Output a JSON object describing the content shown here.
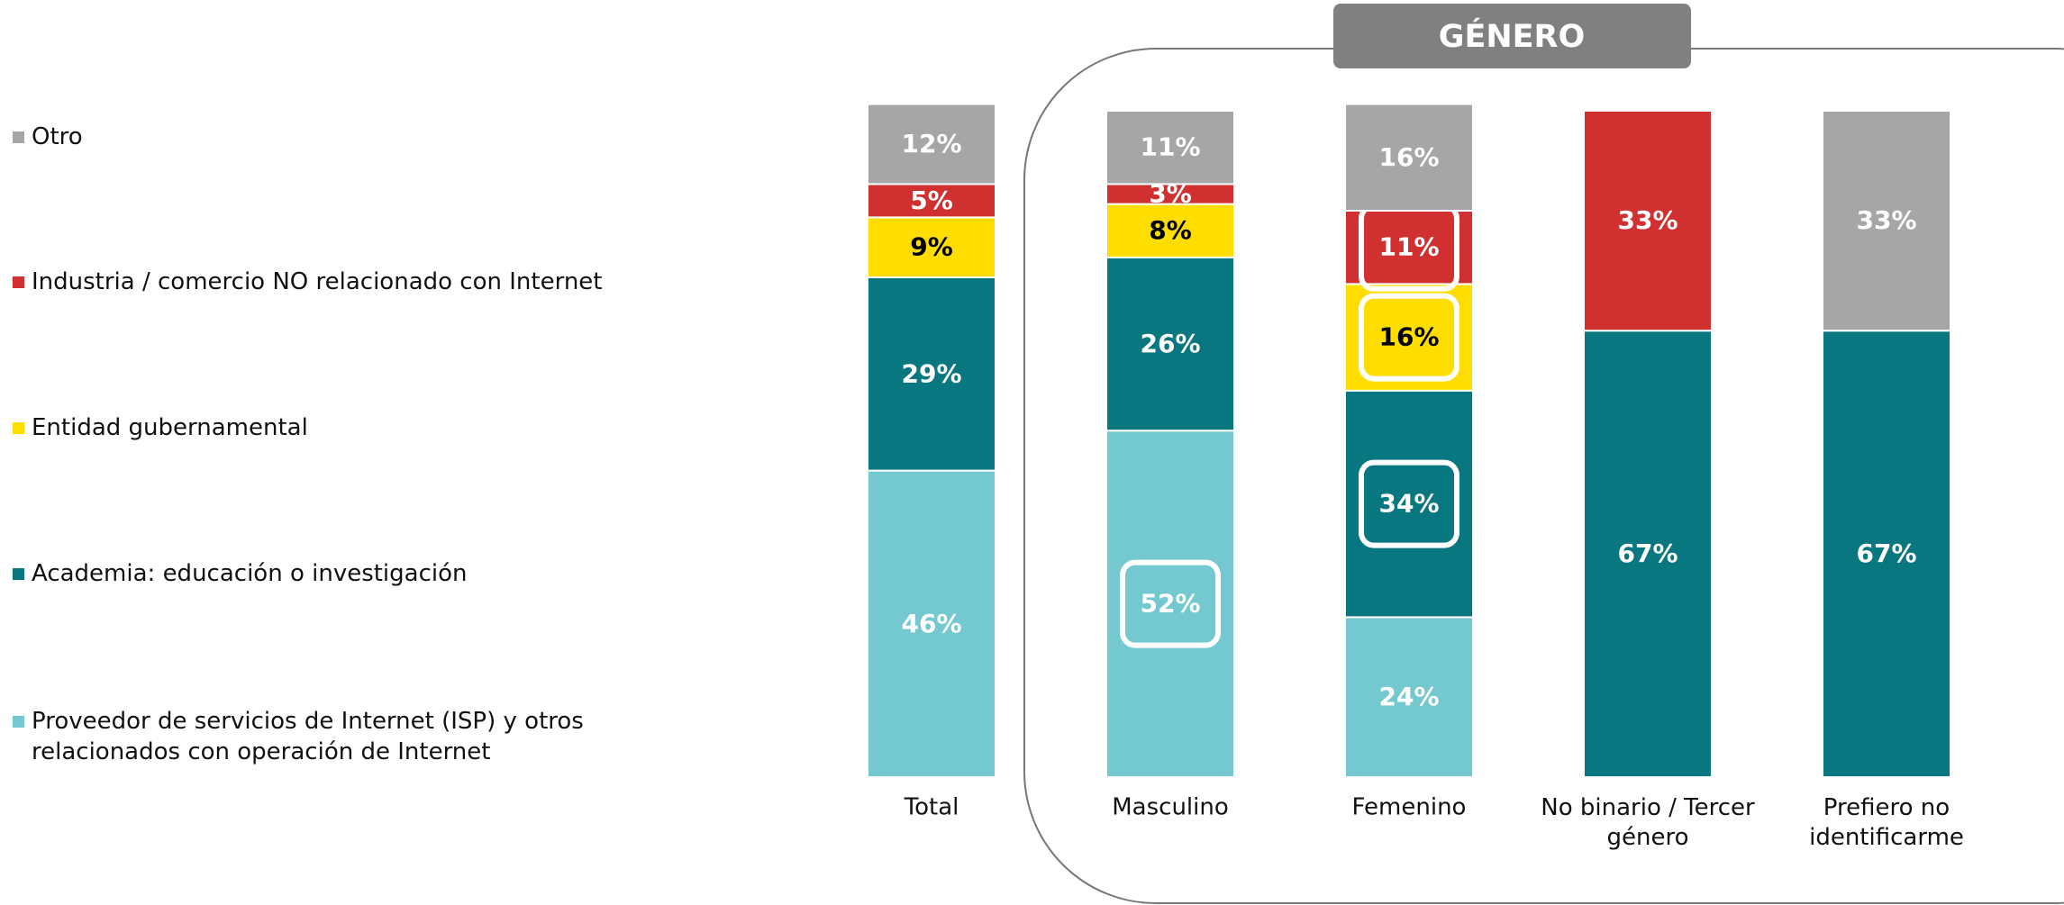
{
  "chart_data": {
    "type": "stacked_bar",
    "group_label": "GÉNERO",
    "categories": [
      "Total",
      "Masculino",
      "Femenino",
      "No binario / Tercer género",
      "Prefiero no identificarme"
    ],
    "ylim": [
      0,
      100
    ],
    "series": [
      {
        "name": "Proveedor de servicios de Internet (ISP) y otros relacionados con operación de Internet",
        "color": "#74c9d0",
        "label_color": "#ffffff",
        "values": [
          46,
          52,
          24,
          null,
          null
        ],
        "value_labels": [
          "46%",
          "52%",
          "24%",
          null,
          null
        ],
        "highlight": [
          false,
          true,
          false,
          false,
          false
        ]
      },
      {
        "name": "Academia: educación o investigación",
        "color": "#08777f",
        "label_color": "#ffffff",
        "values": [
          29,
          26,
          34,
          67,
          67
        ],
        "value_labels": [
          "29%",
          "26%",
          "34%",
          "67%",
          "67%"
        ],
        "highlight": [
          false,
          false,
          true,
          false,
          false
        ]
      },
      {
        "name": "Entidad gubernamental",
        "color": "#ffdd00",
        "label_color": "#000000",
        "values": [
          9,
          8,
          16,
          null,
          null
        ],
        "value_labels": [
          "9%",
          "8%",
          "16%",
          null,
          null
        ],
        "highlight": [
          false,
          false,
          true,
          false,
          false
        ]
      },
      {
        "name": "Industria / comercio NO relacionado con Internet",
        "color": "#d0302f",
        "label_color": "#ffffff",
        "values": [
          5,
          3,
          11,
          33,
          null
        ],
        "value_labels": [
          "5%",
          "3%",
          "11%",
          "33%",
          null
        ],
        "highlight": [
          false,
          false,
          true,
          false,
          false
        ]
      },
      {
        "name": "Otro",
        "color": "#a6a6a6",
        "label_color": "#ffffff",
        "values": [
          12,
          11,
          16,
          null,
          33
        ],
        "value_labels": [
          "12%",
          "11%",
          "16%",
          null,
          "33%"
        ],
        "highlight": [
          false,
          false,
          false,
          false,
          false
        ]
      }
    ]
  }
}
